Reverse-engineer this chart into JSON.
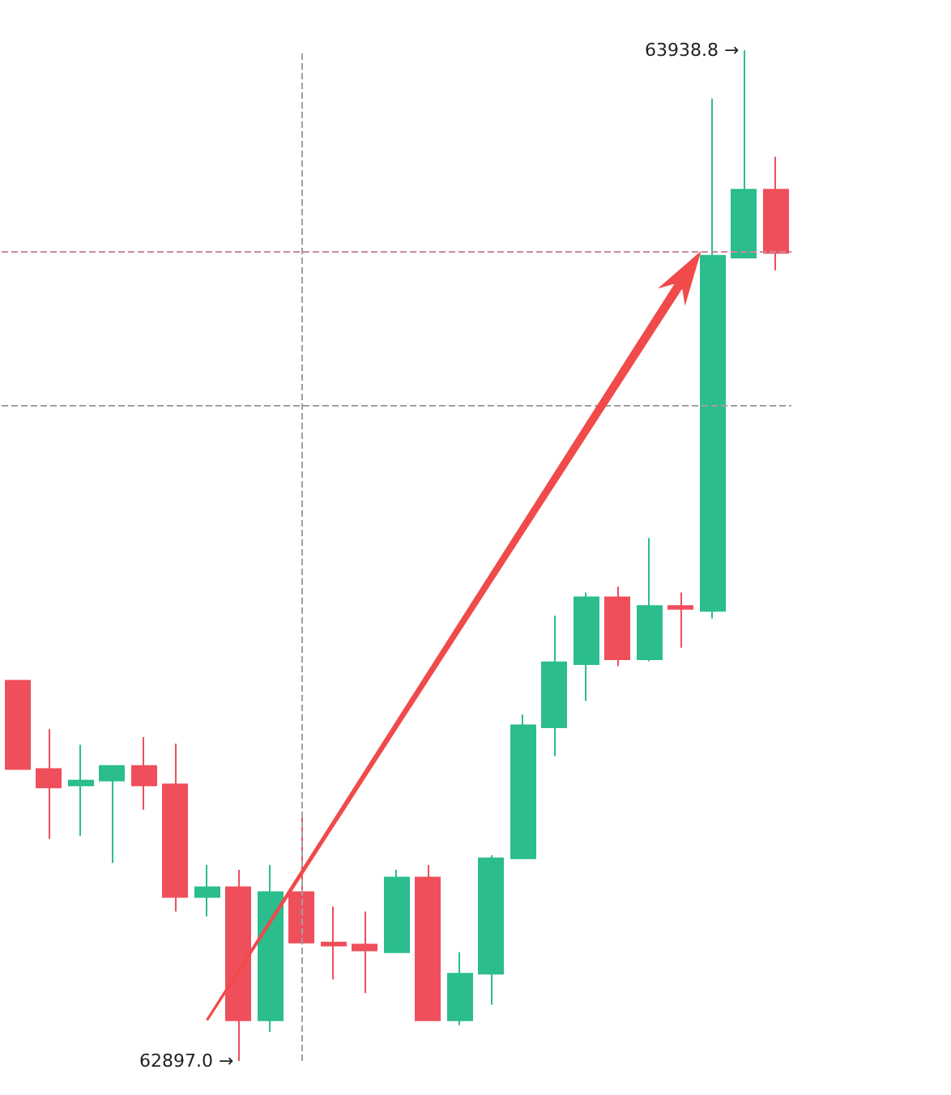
{
  "chart_data": {
    "type": "candlestick",
    "categories": [
      null,
      null,
      null,
      null,
      null,
      null,
      null,
      null,
      null,
      null,
      null,
      null,
      null,
      null,
      null,
      null,
      null,
      null,
      null,
      null,
      null,
      null,
      null,
      null,
      null
    ],
    "ohlc": [
      [
        63289,
        63289,
        63198,
        63198
      ],
      [
        63198,
        63239,
        63126,
        63179
      ],
      [
        63181,
        63223,
        63129,
        63186
      ],
      [
        63186,
        63201,
        63101,
        63201
      ],
      [
        63201,
        63231,
        63156,
        63181
      ],
      [
        63182,
        63224,
        63051,
        63066
      ],
      [
        63066,
        63099,
        63046,
        63076
      ],
      [
        63076,
        63094,
        62897,
        62939
      ],
      [
        62939,
        63099,
        62927,
        63071
      ],
      [
        63071,
        63151,
        63019,
        63019
      ],
      [
        63019,
        63056,
        62981,
        63016
      ],
      [
        63017,
        63051,
        62967,
        63011
      ],
      [
        63009,
        63094,
        63009,
        63086
      ],
      [
        63086,
        63099,
        62939,
        62939
      ],
      [
        62939,
        63009,
        62934,
        62987
      ],
      [
        62987,
        63109,
        62955,
        63106
      ],
      [
        63106,
        63254,
        63106,
        63243
      ],
      [
        63241,
        63356,
        63211,
        63308
      ],
      [
        63306,
        63380,
        63268,
        63375
      ],
      [
        63375,
        63386,
        63304,
        63311
      ],
      [
        63311,
        63436,
        63309,
        63366
      ],
      [
        63366,
        63380,
        63323,
        63363
      ],
      [
        63361,
        63889,
        63353,
        63727
      ],
      [
        63725,
        63938.8,
        63725,
        63795
      ],
      [
        63795,
        63829,
        63712,
        63730
      ]
    ],
    "colors": [
      "#ef4f5a",
      "#ef4f5a",
      "#2bbd8e",
      "#2bbd8e",
      "#ef4f5a",
      "#ef4f5a",
      "#2bbd8e",
      "#ef4f5a",
      "#2bbd8e",
      "#ef4f5a",
      "#ef4f5a",
      "#ef4f5a",
      "#2bbd8e",
      "#ef4f5a",
      "#2bbd8e",
      "#2bbd8e",
      "#2bbd8e",
      "#2bbd8e",
      "#2bbd8e",
      "#ef4f5a",
      "#2bbd8e",
      "#ef4f5a",
      "#2bbd8e",
      "#2bbd8e",
      "#ef4f5a"
    ],
    "relative": false,
    "annotations": [
      "63938.8 →",
      "62897.0 →"
    ],
    "ref_lines": [
      {
        "axis": "y",
        "value": 63732,
        "color": "#c98a98",
        "line_style": "dashed"
      },
      {
        "axis": "y",
        "value": 63573,
        "color": "#a0a0a0",
        "line_style": "dashed"
      }
    ],
    "grid": false,
    "tick_labels": false
  }
}
